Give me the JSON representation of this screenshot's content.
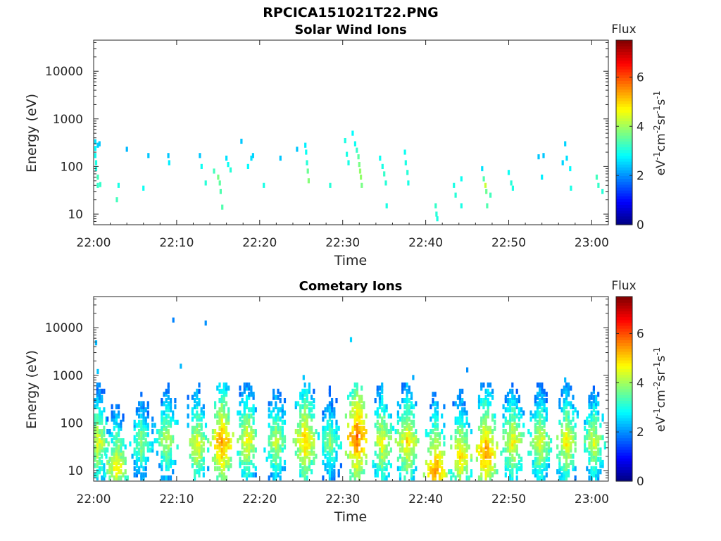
{
  "figure_title": "RPCICA151021T22.PNG",
  "colorbar": {
    "title": "Flux",
    "label_parts": [
      "eV",
      "-1",
      "cm",
      "-2",
      "sr",
      "-1",
      "s",
      "-1"
    ],
    "ticks": [
      0,
      2,
      4,
      6
    ],
    "range": [
      0,
      7.5
    ],
    "colormap": "jet"
  },
  "chart_data": [
    {
      "type": "heatmap",
      "title": "Solar Wind Ions",
      "xlabel": "Time",
      "ylabel": "Energy (eV)",
      "x_ticks": [
        "22:00",
        "22:10",
        "22:20",
        "22:30",
        "22:40",
        "22:50",
        "23:00"
      ],
      "x_range": [
        "22:00",
        "23:02"
      ],
      "y_scale": "log",
      "y_ticks": [
        10,
        100,
        1000,
        10000
      ],
      "y_range": [
        6,
        45000
      ],
      "value_label": "Flux",
      "points": [
        [
          0.2,
          330,
          2.6
        ],
        [
          0.2,
          240,
          2.8
        ],
        [
          0.2,
          170,
          2.9
        ],
        [
          0.3,
          120,
          3.0
        ],
        [
          0.3,
          90,
          3.0
        ],
        [
          0.5,
          280,
          2.5
        ],
        [
          0.5,
          60,
          3.3
        ],
        [
          0.5,
          40,
          3.2
        ],
        [
          0.7,
          300,
          2.4
        ],
        [
          0.8,
          42,
          3.2
        ],
        [
          3.0,
          40,
          3.0
        ],
        [
          2.8,
          20,
          3.3
        ],
        [
          4.0,
          230,
          2.3
        ],
        [
          6.0,
          35,
          2.9
        ],
        [
          6.6,
          170,
          2.4
        ],
        [
          9.0,
          170,
          2.4
        ],
        [
          9.1,
          120,
          2.7
        ],
        [
          12.8,
          170,
          2.4
        ],
        [
          13.0,
          100,
          2.9
        ],
        [
          13.5,
          45,
          3.1
        ],
        [
          14.5,
          80,
          3.3
        ],
        [
          15.0,
          60,
          3.7
        ],
        [
          15.2,
          45,
          3.5
        ],
        [
          15.3,
          30,
          3.4
        ],
        [
          15.5,
          14,
          3.4
        ],
        [
          16.0,
          150,
          2.6
        ],
        [
          16.2,
          110,
          2.9
        ],
        [
          16.5,
          85,
          3.1
        ],
        [
          17.8,
          340,
          2.4
        ],
        [
          18.6,
          100,
          2.8
        ],
        [
          19.0,
          150,
          2.6
        ],
        [
          19.2,
          170,
          2.5
        ],
        [
          20.5,
          40,
          3.0
        ],
        [
          22.5,
          150,
          2.4
        ],
        [
          24.5,
          230,
          2.4
        ],
        [
          25.5,
          280,
          2.7
        ],
        [
          25.6,
          200,
          2.9
        ],
        [
          25.7,
          120,
          3.1
        ],
        [
          25.8,
          80,
          3.6
        ],
        [
          25.9,
          50,
          3.8
        ],
        [
          28.5,
          40,
          3.1
        ],
        [
          30.3,
          350,
          3.0
        ],
        [
          30.5,
          180,
          3.0
        ],
        [
          30.7,
          120,
          3.0
        ],
        [
          31.2,
          500,
          2.8
        ],
        [
          31.5,
          300,
          2.9
        ],
        [
          31.7,
          220,
          3.2
        ],
        [
          31.9,
          160,
          3.5
        ],
        [
          32.0,
          110,
          3.7
        ],
        [
          32.1,
          80,
          3.9
        ],
        [
          32.2,
          60,
          3.9
        ],
        [
          32.3,
          40,
          3.7
        ],
        [
          34.5,
          150,
          2.9
        ],
        [
          34.8,
          100,
          3.0
        ],
        [
          35.0,
          70,
          3.2
        ],
        [
          35.2,
          45,
          3.1
        ],
        [
          35.3,
          15,
          3.0
        ],
        [
          37.5,
          200,
          2.9
        ],
        [
          37.6,
          120,
          3.0
        ],
        [
          37.8,
          75,
          3.1
        ],
        [
          37.9,
          45,
          3.0
        ],
        [
          41.2,
          15,
          3.2
        ],
        [
          41.3,
          10,
          3.1
        ],
        [
          41.4,
          8,
          3.0
        ],
        [
          43.4,
          40,
          3.0
        ],
        [
          43.6,
          25,
          3.1
        ],
        [
          44.3,
          55,
          2.9
        ],
        [
          44.3,
          15,
          3.0
        ],
        [
          46.8,
          90,
          2.6
        ],
        [
          47.0,
          55,
          3.4
        ],
        [
          47.2,
          40,
          4.3
        ],
        [
          47.3,
          30,
          3.6
        ],
        [
          47.4,
          15,
          3.4
        ],
        [
          47.8,
          25,
          3.3
        ],
        [
          50.0,
          75,
          2.9
        ],
        [
          50.3,
          45,
          3.1
        ],
        [
          50.5,
          35,
          3.0
        ],
        [
          53.6,
          160,
          2.4
        ],
        [
          54.2,
          170,
          2.4
        ],
        [
          54.0,
          60,
          2.7
        ],
        [
          56.5,
          120,
          2.5
        ],
        [
          56.8,
          300,
          2.5
        ],
        [
          57.0,
          150,
          2.6
        ],
        [
          57.4,
          90,
          2.8
        ],
        [
          57.5,
          35,
          3.0
        ],
        [
          60.6,
          60,
          3.3
        ],
        [
          60.8,
          40,
          3.2
        ],
        [
          61.3,
          30,
          3.1
        ]
      ]
    },
    {
      "type": "heatmap",
      "title": "Cometary Ions",
      "xlabel": "Time",
      "ylabel": "Energy (eV)",
      "x_ticks": [
        "22:00",
        "22:10",
        "22:20",
        "22:30",
        "22:40",
        "22:50",
        "23:00"
      ],
      "x_range": [
        "22:00",
        "23:02"
      ],
      "y_scale": "log",
      "y_ticks": [
        10,
        100,
        1000,
        10000
      ],
      "y_range": [
        6,
        45000
      ],
      "value_label": "Flux",
      "bursts": [
        {
          "t": 0.5,
          "peak": 40,
          "flux": 4.6
        },
        {
          "t": 2.8,
          "peak": 12,
          "flux": 4.8
        },
        {
          "t": 5.8,
          "peak": 40,
          "flux": 4.0
        },
        {
          "t": 8.8,
          "peak": 45,
          "flux": 4.3
        },
        {
          "t": 12.5,
          "peak": 35,
          "flux": 4.7
        },
        {
          "t": 15.5,
          "peak": 40,
          "flux": 5.6
        },
        {
          "t": 18.5,
          "peak": 45,
          "flux": 4.8
        },
        {
          "t": 22.0,
          "peak": 40,
          "flux": 4.4
        },
        {
          "t": 25.5,
          "peak": 45,
          "flux": 5.2
        },
        {
          "t": 28.5,
          "peak": 40,
          "flux": 4.0
        },
        {
          "t": 31.8,
          "peak": 55,
          "flux": 5.9
        },
        {
          "t": 34.8,
          "peak": 40,
          "flux": 4.8
        },
        {
          "t": 37.8,
          "peak": 40,
          "flux": 5.0
        },
        {
          "t": 41.2,
          "peak": 10,
          "flux": 5.6
        },
        {
          "t": 44.2,
          "peak": 20,
          "flux": 5.0
        },
        {
          "t": 47.3,
          "peak": 25,
          "flux": 5.6
        },
        {
          "t": 50.5,
          "peak": 40,
          "flux": 4.8
        },
        {
          "t": 53.8,
          "peak": 40,
          "flux": 4.6
        },
        {
          "t": 57.0,
          "peak": 40,
          "flux": 4.8
        },
        {
          "t": 60.3,
          "peak": 40,
          "flux": 4.5
        }
      ],
      "sparse_points": [
        [
          0.3,
          4800,
          2.3
        ],
        [
          0.5,
          1200,
          2.4
        ],
        [
          9.6,
          14500,
          1.9
        ],
        [
          13.5,
          12500,
          2.0
        ],
        [
          10.5,
          1550,
          2.3
        ],
        [
          31.0,
          5600,
          2.5
        ],
        [
          25.3,
          900,
          2.4
        ],
        [
          38.5,
          900,
          2.2
        ],
        [
          45.0,
          1300,
          2.0
        ],
        [
          56.8,
          800,
          2.3
        ]
      ]
    }
  ]
}
